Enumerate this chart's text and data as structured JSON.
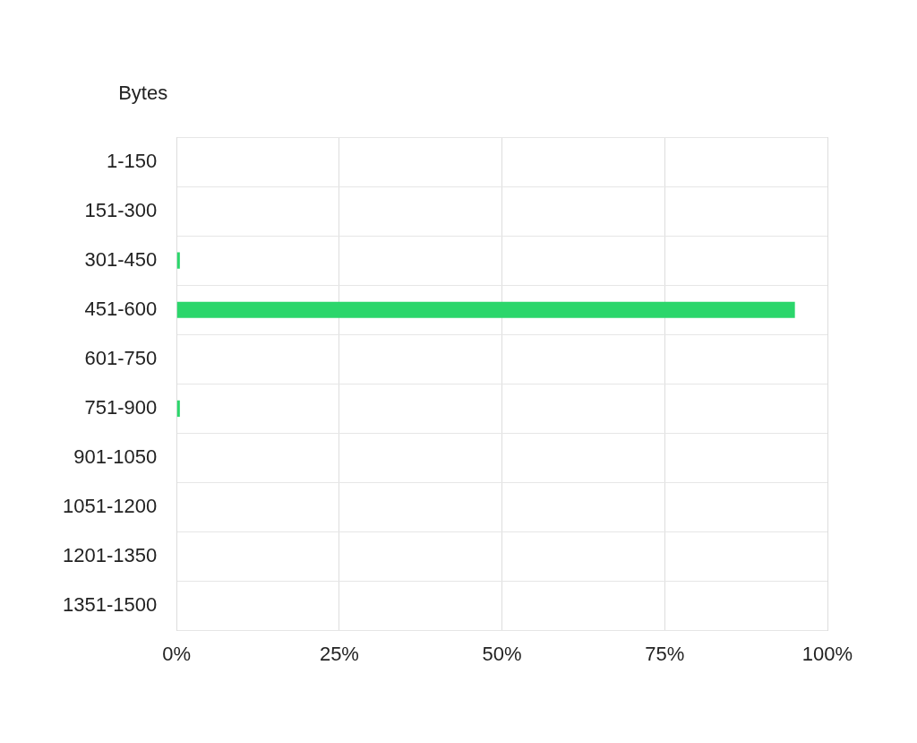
{
  "chart_data": {
    "type": "bar",
    "orientation": "horizontal",
    "ylabel": "Bytes",
    "categories": [
      "1-150",
      "151-300",
      "301-450",
      "451-600",
      "601-750",
      "751-900",
      "901-1050",
      "1051-1200",
      "1201-1350",
      "1351-1500"
    ],
    "values": [
      0,
      0,
      0.5,
      95,
      0,
      0.5,
      0,
      0,
      0,
      0
    ],
    "color": "#2bd66b",
    "xlim": [
      0,
      100
    ],
    "xticks": [
      {
        "value": 0,
        "label": "0%"
      },
      {
        "value": 25,
        "label": "25%"
      },
      {
        "value": 50,
        "label": "50%"
      },
      {
        "value": 75,
        "label": "75%"
      },
      {
        "value": 100,
        "label": "100%"
      }
    ],
    "grid": true,
    "legend": false
  }
}
